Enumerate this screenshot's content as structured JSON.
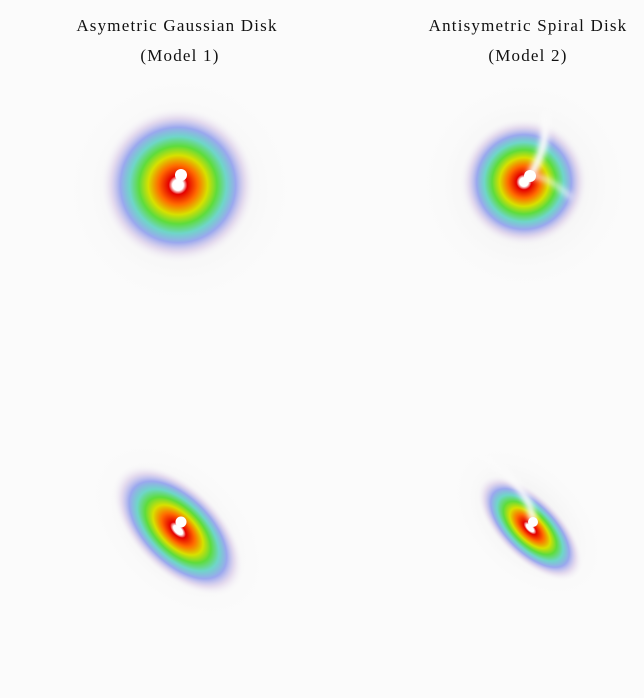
{
  "panels": [
    {
      "title": "Asymetric Gaussian Disk",
      "subtitle": "(Model 1)"
    },
    {
      "title": "Antisymetric Spiral Disk",
      "subtitle": "(Model 2)"
    }
  ]
}
